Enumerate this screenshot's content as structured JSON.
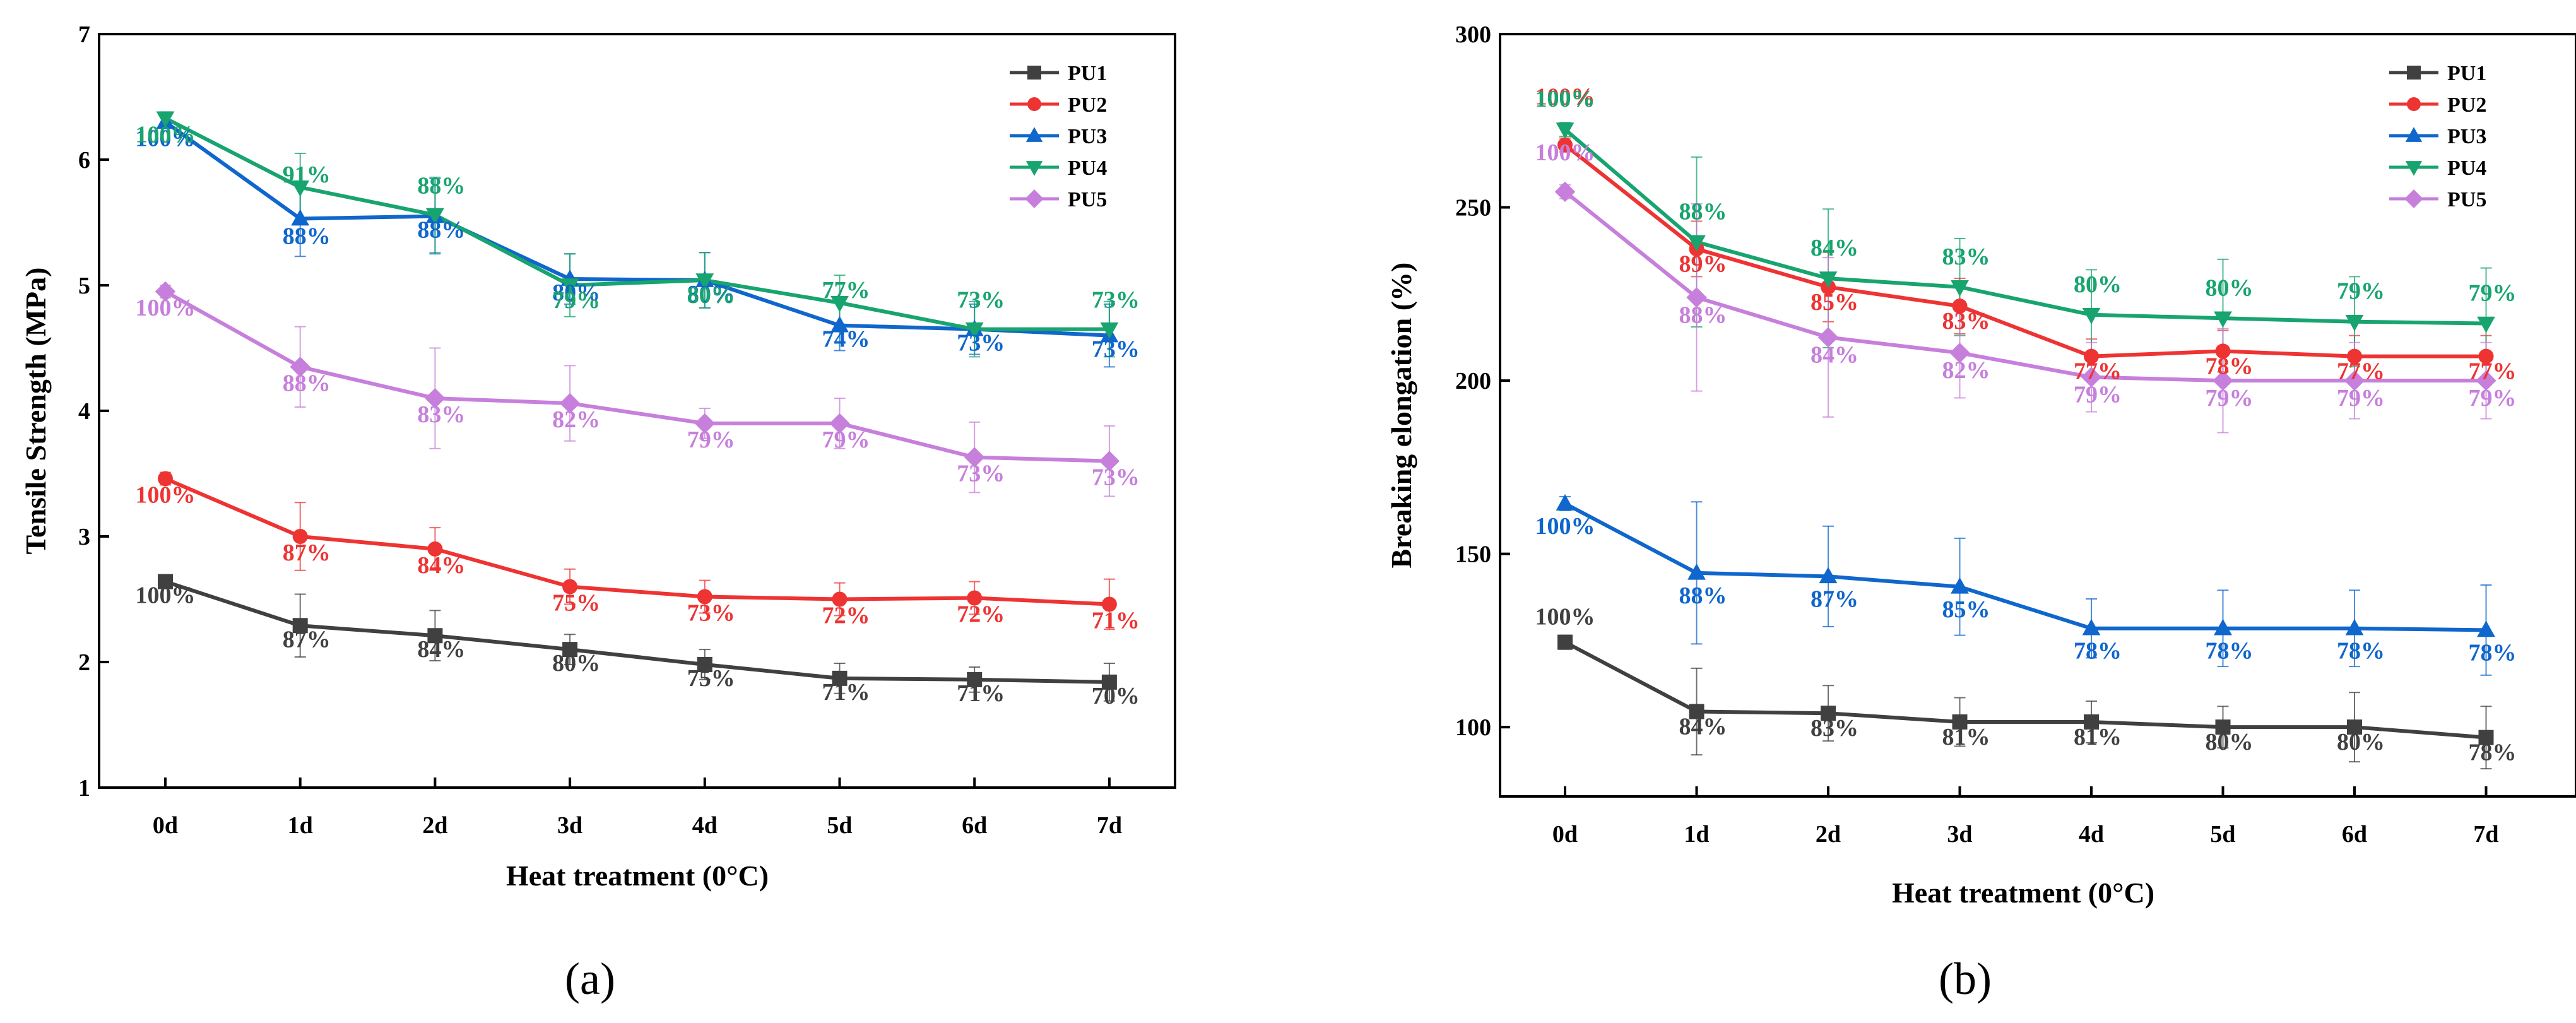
{
  "chart_data": [
    {
      "type": "line",
      "panel": "a",
      "caption": "(a)",
      "xlabel": "Heat treatment (0°C)",
      "ylabel": "Tensile Strength (MPa)",
      "categories": [
        "0d",
        "1d",
        "2d",
        "3d",
        "4d",
        "5d",
        "6d",
        "7d"
      ],
      "ylim": [
        1,
        7
      ],
      "yticks": [
        1,
        2,
        3,
        4,
        5,
        6,
        7
      ],
      "legend_position": "top-right",
      "series": [
        {
          "name": "PU1",
          "color": "#404040",
          "marker": "square",
          "values": [
            2.64,
            2.29,
            2.21,
            2.1,
            1.98,
            1.87,
            1.86,
            1.84
          ],
          "errors": [
            0.05,
            0.25,
            0.2,
            0.12,
            0.12,
            0.12,
            0.1,
            0.15
          ],
          "labels": [
            "100%",
            "87%",
            "84%",
            "80%",
            "75%",
            "71%",
            "71%",
            "70%"
          ]
        },
        {
          "name": "PU2",
          "color": "#ee3333",
          "marker": "circle",
          "values": [
            3.46,
            3.0,
            2.9,
            2.6,
            2.52,
            2.5,
            2.51,
            2.46
          ],
          "errors": [
            0.05,
            0.27,
            0.17,
            0.14,
            0.13,
            0.13,
            0.13,
            0.2
          ],
          "labels": [
            "100%",
            "87%",
            "84%",
            "75%",
            "73%",
            "72%",
            "72%",
            "71%"
          ]
        },
        {
          "name": "PU3",
          "color": "#0f66cc",
          "marker": "triangle-up",
          "values": [
            6.3,
            5.53,
            5.55,
            5.05,
            5.04,
            4.68,
            4.65,
            4.6
          ],
          "errors": [
            0.05,
            0.3,
            0.3,
            0.2,
            0.22,
            0.2,
            0.2,
            0.25
          ],
          "labels": [
            "100%",
            "88%",
            "88%",
            "80%",
            "80%",
            "74%",
            "73%",
            "73%"
          ]
        },
        {
          "name": "PU4",
          "color": "#18a46f",
          "marker": "triangle-down",
          "values": [
            6.33,
            5.78,
            5.56,
            5.0,
            5.04,
            4.86,
            4.65,
            4.65
          ],
          "errors": [
            0.05,
            0.27,
            0.3,
            0.25,
            0.22,
            0.22,
            0.22,
            0.22
          ],
          "labels": [
            "100%",
            "91%",
            "88%",
            "79%",
            "80%",
            "77%",
            "73%",
            "73%"
          ]
        },
        {
          "name": "PU5",
          "color": "#c77fdc",
          "marker": "diamond",
          "values": [
            4.95,
            4.35,
            4.1,
            4.06,
            3.9,
            3.9,
            3.63,
            3.6
          ],
          "errors": [
            0.05,
            0.32,
            0.4,
            0.3,
            0.12,
            0.2,
            0.28,
            0.28
          ],
          "labels": [
            "100%",
            "88%",
            "83%",
            "82%",
            "79%",
            "79%",
            "73%",
            "73%"
          ]
        }
      ]
    },
    {
      "type": "line",
      "panel": "b",
      "caption": "(b)",
      "xlabel": "Heat treatment (0°C)",
      "ylabel": "Breaking elongation (%)",
      "categories": [
        "0d",
        "1d",
        "2d",
        "3d",
        "4d",
        "5d",
        "6d",
        "7d"
      ],
      "ylim": [
        80,
        300
      ],
      "yticks": [
        100,
        150,
        200,
        250,
        300
      ],
      "legend_position": "top-right",
      "series": [
        {
          "name": "PU1",
          "color": "#404040",
          "marker": "square",
          "values": [
            124.5,
            104.5,
            104,
            101.5,
            101.5,
            100,
            100,
            97
          ],
          "errors": [
            2,
            12.5,
            8,
            7,
            6,
            6,
            10,
            9
          ],
          "labels": [
            "100%",
            "84%",
            "83%",
            "81%",
            "81%",
            "80%",
            "80%",
            "78%"
          ]
        },
        {
          "name": "PU2",
          "color": "#ee3333",
          "marker": "circle",
          "values": [
            268,
            238,
            227,
            221.5,
            207,
            208.5,
            207,
            207
          ],
          "errors": [
            2,
            8,
            10,
            8,
            5,
            6,
            6,
            6
          ],
          "labels": [
            "100%",
            "89%",
            "85%",
            "83%",
            "77%",
            "78%",
            "77%",
            "77%"
          ]
        },
        {
          "name": "PU3",
          "color": "#0f66cc",
          "marker": "triangle-up",
          "values": [
            164.5,
            144.5,
            143.5,
            140.5,
            128.5,
            128.5,
            128.5,
            128
          ],
          "errors": [
            2,
            20.5,
            14.5,
            14,
            8.5,
            11,
            11,
            13
          ],
          "labels": [
            "100%",
            "88%",
            "87%",
            "85%",
            "78%",
            "78%",
            "78%",
            "78%"
          ]
        },
        {
          "name": "PU4",
          "color": "#18a46f",
          "marker": "triangle-down",
          "values": [
            272.5,
            240,
            229.5,
            227,
            219,
            218,
            217,
            216.5
          ],
          "errors": [
            2,
            24.5,
            20,
            14,
            13,
            17,
            13,
            16
          ],
          "labels": [
            "100%",
            "88%",
            "84%",
            "83%",
            "80%",
            "80%",
            "79%",
            "79%"
          ]
        },
        {
          "name": "PU5",
          "color": "#c77fdc",
          "marker": "diamond",
          "values": [
            254.5,
            224,
            212.5,
            208,
            201,
            200,
            200,
            200
          ],
          "errors": [
            2,
            27,
            23,
            13,
            10,
            15,
            11,
            11
          ],
          "labels": [
            "100%",
            "88%",
            "84%",
            "82%",
            "79%",
            "79%",
            "79%",
            "79%"
          ]
        }
      ]
    }
  ]
}
